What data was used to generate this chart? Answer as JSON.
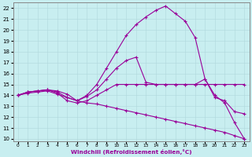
{
  "xlabel": "Windchill (Refroidissement éolien,°C)",
  "background_color": "#c8eef0",
  "grid_color": "#b0d8dc",
  "line_color": "#990099",
  "xlim": [
    -0.5,
    23.5
  ],
  "ylim": [
    9.8,
    22.5
  ],
  "xticks": [
    0,
    1,
    2,
    3,
    4,
    5,
    6,
    7,
    8,
    9,
    10,
    11,
    12,
    13,
    14,
    15,
    16,
    17,
    18,
    19,
    20,
    21,
    22,
    23
  ],
  "yticks": [
    10,
    11,
    12,
    13,
    14,
    15,
    16,
    17,
    18,
    19,
    20,
    21,
    22
  ],
  "series": [
    {
      "x": [
        0,
        1,
        2,
        3,
        4,
        5,
        6,
        7,
        8,
        9,
        10,
        11,
        12,
        13,
        14,
        15,
        16,
        17,
        18,
        19,
        20,
        21,
        22,
        23
      ],
      "y": [
        14.0,
        14.3,
        14.4,
        14.5,
        14.4,
        14.1,
        13.5,
        14.0,
        15.0,
        16.5,
        18.0,
        19.5,
        20.5,
        21.2,
        21.8,
        22.2,
        21.5,
        20.8,
        19.3,
        15.5,
        14.0,
        13.3,
        11.5,
        10.0
      ]
    },
    {
      "x": [
        0,
        1,
        2,
        3,
        4,
        5,
        6,
        7,
        8,
        9,
        10,
        11,
        12,
        13,
        14,
        15,
        16,
        17,
        18,
        19,
        20,
        21,
        22,
        23
      ],
      "y": [
        14.0,
        14.3,
        14.4,
        14.5,
        14.3,
        13.8,
        13.5,
        13.9,
        14.5,
        15.5,
        16.5,
        17.2,
        17.5,
        15.2,
        15.0,
        15.0,
        15.0,
        15.0,
        15.0,
        15.5,
        13.8,
        13.5,
        12.5,
        12.3
      ]
    },
    {
      "x": [
        0,
        1,
        2,
        3,
        4,
        5,
        6,
        7,
        8,
        9,
        10,
        11,
        12,
        13,
        14,
        15,
        16,
        17,
        18,
        19,
        20,
        21,
        22,
        23
      ],
      "y": [
        14.0,
        14.3,
        14.4,
        14.5,
        14.2,
        13.5,
        13.3,
        13.5,
        14.0,
        14.5,
        15.0,
        15.0,
        15.0,
        15.0,
        15.0,
        15.0,
        15.0,
        15.0,
        15.0,
        15.0,
        15.0,
        15.0,
        15.0,
        15.0
      ]
    },
    {
      "x": [
        0,
        1,
        2,
        3,
        4,
        5,
        6,
        7,
        8,
        9,
        10,
        11,
        12,
        13,
        14,
        15,
        16,
        17,
        18,
        19,
        20,
        21,
        22,
        23
      ],
      "y": [
        14.0,
        14.2,
        14.3,
        14.4,
        14.1,
        13.8,
        13.5,
        13.3,
        13.2,
        13.0,
        12.8,
        12.6,
        12.4,
        12.2,
        12.0,
        11.8,
        11.6,
        11.4,
        11.2,
        11.0,
        10.8,
        10.6,
        10.3,
        10.0
      ]
    }
  ]
}
